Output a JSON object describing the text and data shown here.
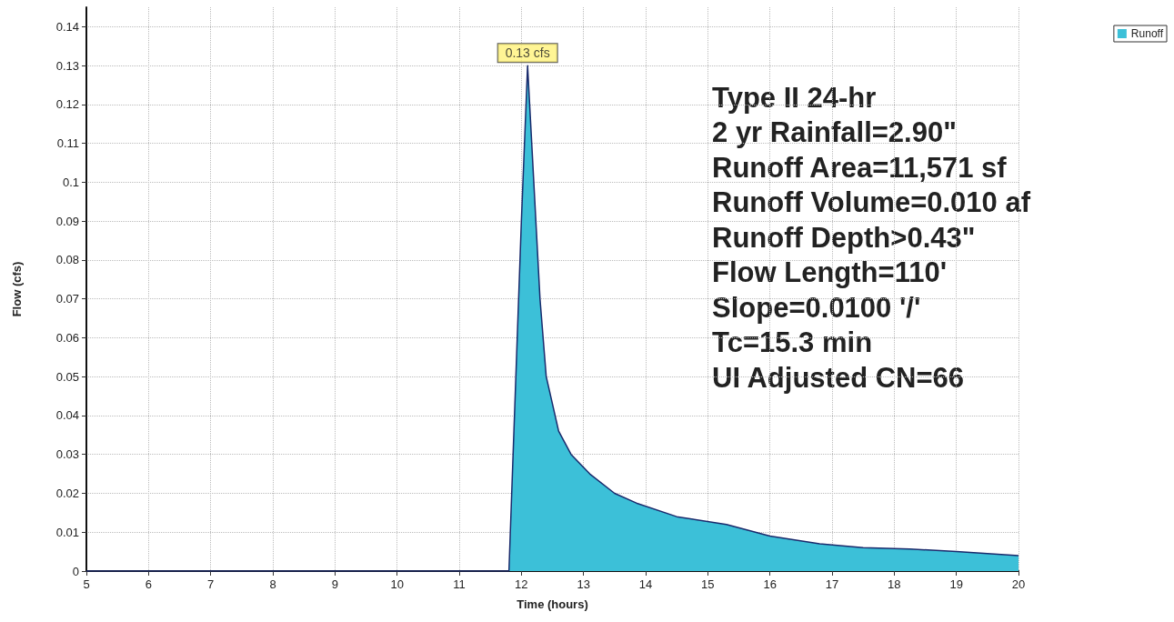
{
  "chart_data": {
    "type": "area",
    "xlabel": "Time (hours)",
    "ylabel": "Flow (cfs)",
    "x": [
      5,
      11.8,
      12.0,
      12.1,
      12.2,
      12.3,
      12.4,
      12.6,
      12.8,
      13.1,
      13.5,
      13.85,
      14.5,
      15.3,
      16,
      16.8,
      17.5,
      18.25,
      19,
      20
    ],
    "series": [
      {
        "name": "Runoff",
        "color": "#3cc0d8",
        "values": [
          0,
          0,
          0.09,
          0.13,
          0.1,
          0.07,
          0.05,
          0.036,
          0.03,
          0.025,
          0.02,
          0.0175,
          0.014,
          0.012,
          0.009,
          0.007,
          0.006,
          0.0057,
          0.005,
          0.004
        ]
      }
    ],
    "xlim": [
      5,
      20
    ],
    "xticks": [
      5,
      6,
      7,
      8,
      9,
      10,
      11,
      12,
      13,
      14,
      15,
      16,
      17,
      18,
      19,
      20
    ],
    "ylim": [
      0,
      0.145
    ],
    "yticks": [
      0,
      0.01,
      0.02,
      0.03,
      0.04,
      0.05,
      0.06,
      0.07,
      0.08,
      0.09,
      0.1,
      0.11,
      0.12,
      0.13,
      0.14
    ],
    "grid": true,
    "legend": "top right",
    "marker": "none",
    "line_style": "solid",
    "annotations": [
      {
        "text": "0.13 cfs",
        "x": 12.1,
        "y": 0.13
      },
      "Type II 24-hr",
      "2 yr Rainfall=2.90\"",
      "Runoff Area=11,571 sf",
      "Runoff Volume=0.010 af",
      "Runoff Depth>0.43\"",
      "Flow Length=110'",
      "Slope=0.0100 '/'",
      "Tc=15.3 min",
      "UI Adjusted CN=66"
    ]
  }
}
